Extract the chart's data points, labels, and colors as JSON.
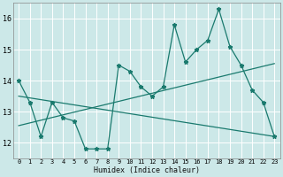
{
  "xlabel": "Humidex (Indice chaleur)",
  "bg_color": "#cce8e8",
  "grid_color": "#ffffff",
  "line_color": "#1a7a6e",
  "xlim": [
    -0.5,
    23.5
  ],
  "ylim": [
    11.5,
    16.5
  ],
  "yticks": [
    12,
    13,
    14,
    15,
    16
  ],
  "xticks": [
    0,
    1,
    2,
    3,
    4,
    5,
    6,
    7,
    8,
    9,
    10,
    11,
    12,
    13,
    14,
    15,
    16,
    17,
    18,
    19,
    20,
    21,
    22,
    23
  ],
  "series1_x": [
    0,
    1,
    2,
    3,
    4,
    5,
    6,
    7,
    8,
    9,
    10,
    11,
    12,
    13,
    14,
    15,
    16,
    17,
    18,
    19,
    20,
    21,
    22,
    23
  ],
  "series1_y": [
    14.0,
    13.3,
    12.2,
    13.3,
    12.8,
    12.7,
    11.8,
    11.8,
    11.8,
    14.5,
    14.3,
    13.8,
    13.5,
    13.8,
    15.8,
    14.6,
    15.0,
    15.3,
    16.3,
    15.1,
    14.5,
    13.7,
    13.3,
    12.2
  ],
  "trend1_x": [
    0,
    23
  ],
  "trend1_y": [
    12.55,
    14.55
  ],
  "trend2_x": [
    0,
    23
  ],
  "trend2_y": [
    13.5,
    12.2
  ],
  "xlabel_fontsize": 6,
  "tick_fontsize": 5
}
